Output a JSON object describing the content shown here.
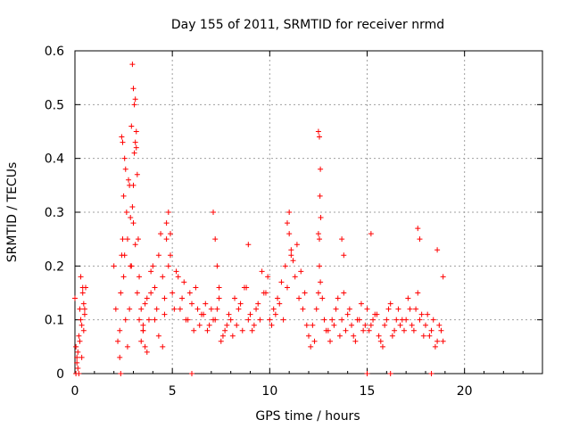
{
  "chart_data": {
    "type": "scatter",
    "title": "Day 155 of 2011, SRMTID for receiver nrmd",
    "xlabel": "GPS time / hours",
    "ylabel": "SRMTID / TECUs",
    "xlim": [
      0,
      24
    ],
    "ylim": [
      0,
      0.6
    ],
    "xticks": [
      0,
      5,
      10,
      15,
      20
    ],
    "xtick_labels": [
      "0",
      "5",
      "10",
      "15",
      "20"
    ],
    "yticks": [
      0,
      0.1,
      0.2,
      0.3,
      0.4,
      0.5,
      0.6
    ],
    "ytick_labels": [
      "0",
      "0.1",
      "0.2",
      "0.3",
      "0.4",
      "0.5",
      "0.6"
    ],
    "grid": true,
    "legend": "none",
    "marker": "+",
    "series": [
      {
        "color": "#ff0000",
        "x": [
          0.0,
          0.05,
          0.1,
          0.15,
          0.2,
          0.25,
          0.3,
          0.35,
          0.4,
          0.45,
          0.5,
          0.55,
          0.05,
          0.1,
          0.15,
          0.2,
          0.25,
          0.3,
          0.4,
          0.5,
          0.35,
          0.45,
          2.0,
          2.1,
          2.2,
          2.3,
          2.35,
          2.4,
          2.45,
          2.5,
          2.55,
          2.6,
          2.65,
          2.7,
          2.75,
          2.8,
          2.85,
          2.9,
          2.95,
          3.0,
          3.05,
          3.1,
          3.15,
          3.2,
          3.25,
          2.3,
          2.35,
          2.4,
          2.5,
          2.6,
          2.7,
          2.8,
          2.9,
          3.0,
          3.1,
          3.2,
          3.3,
          3.4,
          3.5,
          3.6,
          2.45,
          2.55,
          2.85,
          2.95,
          3.0,
          3.05,
          3.1,
          3.15,
          3.3,
          3.4,
          3.5,
          3.6,
          3.7,
          3.8,
          3.9,
          4.0,
          4.1,
          4.2,
          4.3,
          4.4,
          4.5,
          4.6,
          4.7,
          4.8,
          4.9,
          3.5,
          3.7,
          3.9,
          4.1,
          4.3,
          4.5,
          4.7,
          4.9,
          4.6,
          4.8,
          5.0,
          5.2,
          5.4,
          5.6,
          5.8,
          6.0,
          6.2,
          6.4,
          6.6,
          6.8,
          7.0,
          7.2,
          7.4,
          7.6,
          7.8,
          5.1,
          5.3,
          5.5,
          5.7,
          5.9,
          6.1,
          6.3,
          6.5,
          6.7,
          6.9,
          7.1,
          7.3,
          7.5,
          7.7,
          7.9,
          7.1,
          7.2,
          7.3,
          7.4,
          6.0,
          8.0,
          8.2,
          8.4,
          8.6,
          8.8,
          9.0,
          9.2,
          9.4,
          9.6,
          9.8,
          10.0,
          10.2,
          10.4,
          10.6,
          10.8,
          11.0,
          11.2,
          11.4,
          11.6,
          11.8,
          8.1,
          8.3,
          8.5,
          8.7,
          8.9,
          9.1,
          9.3,
          9.5,
          9.7,
          9.9,
          10.1,
          10.3,
          10.5,
          10.7,
          10.9,
          11.1,
          11.3,
          11.5,
          11.7,
          11.9,
          8.9,
          10.9,
          11.0,
          11.1,
          12.0,
          12.1,
          12.2,
          12.3,
          12.4,
          12.5,
          12.55,
          12.6,
          12.7,
          12.8,
          12.9,
          12.5,
          12.55,
          12.6,
          12.58,
          12.62,
          12.5,
          12.55,
          13.0,
          13.2,
          13.4,
          13.6,
          13.8,
          14.0,
          14.2,
          14.4,
          14.6,
          14.8,
          15.0,
          15.2,
          15.4,
          15.6,
          15.8,
          16.0,
          16.2,
          16.4,
          16.6,
          16.8,
          13.1,
          13.3,
          13.5,
          13.7,
          13.9,
          14.1,
          14.3,
          14.5,
          14.7,
          14.9,
          15.1,
          15.3,
          15.5,
          15.7,
          15.9,
          16.1,
          16.3,
          16.5,
          16.7,
          16.9,
          13.7,
          13.8,
          15.2,
          15.0,
          16.2,
          17.0,
          17.2,
          17.4,
          17.6,
          17.8,
          18.0,
          18.2,
          18.4,
          18.6,
          18.8,
          17.1,
          17.3,
          17.5,
          17.7,
          17.9,
          18.1,
          18.3,
          18.5,
          18.7,
          18.9,
          17.6,
          17.7,
          18.6,
          18.9,
          18.3
        ],
        "y": [
          0.14,
          0.05,
          0.03,
          0.01,
          0.07,
          0.12,
          0.18,
          0.09,
          0.16,
          0.13,
          0.11,
          0.16,
          0.0,
          0.02,
          0.04,
          0.0,
          0.06,
          0.1,
          0.15,
          0.12,
          0.03,
          0.08,
          0.2,
          0.12,
          0.06,
          0.03,
          0.0,
          0.44,
          0.43,
          0.33,
          0.4,
          0.38,
          0.3,
          0.25,
          0.36,
          0.35,
          0.29,
          0.46,
          0.575,
          0.53,
          0.5,
          0.51,
          0.42,
          0.37,
          0.25,
          0.08,
          0.15,
          0.22,
          0.18,
          0.1,
          0.05,
          0.12,
          0.2,
          0.28,
          0.24,
          0.15,
          0.1,
          0.06,
          0.08,
          0.13,
          0.25,
          0.22,
          0.2,
          0.31,
          0.35,
          0.41,
          0.43,
          0.45,
          0.18,
          0.12,
          0.09,
          0.05,
          0.04,
          0.1,
          0.15,
          0.2,
          0.16,
          0.12,
          0.22,
          0.26,
          0.18,
          0.14,
          0.25,
          0.3,
          0.22,
          0.08,
          0.14,
          0.19,
          0.1,
          0.07,
          0.05,
          0.28,
          0.26,
          0.11,
          0.2,
          0.15,
          0.19,
          0.12,
          0.17,
          0.1,
          0.13,
          0.16,
          0.09,
          0.11,
          0.08,
          0.12,
          0.1,
          0.14,
          0.07,
          0.09,
          0.12,
          0.18,
          0.14,
          0.1,
          0.15,
          0.08,
          0.12,
          0.11,
          0.13,
          0.09,
          0.1,
          0.12,
          0.06,
          0.08,
          0.11,
          0.3,
          0.25,
          0.2,
          0.16,
          0.0,
          0.1,
          0.14,
          0.12,
          0.08,
          0.16,
          0.11,
          0.09,
          0.13,
          0.19,
          0.15,
          0.1,
          0.12,
          0.14,
          0.17,
          0.2,
          0.26,
          0.21,
          0.24,
          0.19,
          0.15,
          0.07,
          0.09,
          0.13,
          0.16,
          0.1,
          0.08,
          0.12,
          0.1,
          0.15,
          0.18,
          0.09,
          0.11,
          0.13,
          0.1,
          0.16,
          0.22,
          0.18,
          0.14,
          0.12,
          0.09,
          0.24,
          0.28,
          0.3,
          0.23,
          0.07,
          0.05,
          0.09,
          0.06,
          0.12,
          0.15,
          0.2,
          0.17,
          0.14,
          0.1,
          0.08,
          0.45,
          0.44,
          0.38,
          0.33,
          0.29,
          0.26,
          0.25,
          0.08,
          0.1,
          0.12,
          0.07,
          0.15,
          0.11,
          0.09,
          0.06,
          0.1,
          0.08,
          0.12,
          0.09,
          0.11,
          0.07,
          0.05,
          0.1,
          0.13,
          0.08,
          0.12,
          0.1,
          0.06,
          0.09,
          0.14,
          0.1,
          0.08,
          0.12,
          0.07,
          0.1,
          0.13,
          0.09,
          0.08,
          0.1,
          0.11,
          0.06,
          0.09,
          0.12,
          0.07,
          0.1,
          0.09,
          0.08,
          0.25,
          0.22,
          0.26,
          0.0,
          0.0,
          0.1,
          0.12,
          0.08,
          0.15,
          0.11,
          0.09,
          0.07,
          0.1,
          0.06,
          0.08,
          0.14,
          0.09,
          0.12,
          0.1,
          0.07,
          0.11,
          0.08,
          0.05,
          0.09,
          0.06,
          0.27,
          0.25,
          0.23,
          0.18,
          0.0
        ]
      }
    ]
  }
}
